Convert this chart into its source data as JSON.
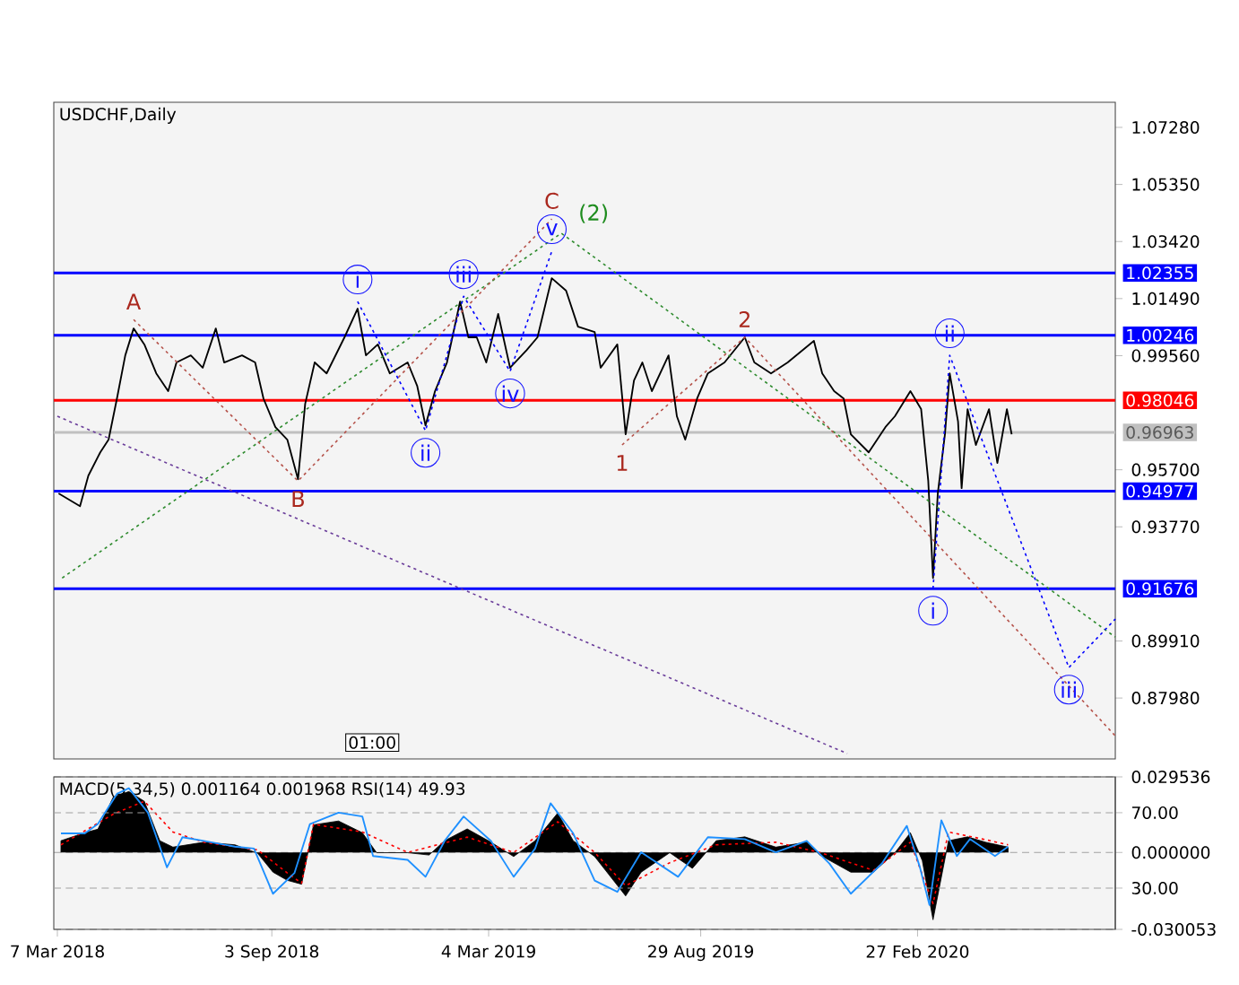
{
  "chart_data": [
    {
      "type": "line",
      "title": "USDCHF,Daily",
      "xlim": [
        "2018-03-04",
        "2020-08-11"
      ],
      "ylim": [
        0.8592,
        1.0813
      ],
      "tick_labels": "y",
      "yticks": [
        {
          "value": 1.0728,
          "label": "1.07280"
        },
        {
          "value": 1.0535,
          "label": "1.05350"
        },
        {
          "value": 1.0342,
          "label": "1.03420"
        },
        {
          "value": 1.0149,
          "label": "1.01490"
        },
        {
          "value": 0.9956,
          "label": "0.99560"
        },
        {
          "value": 0.957,
          "label": "0.95700"
        },
        {
          "value": 0.9377,
          "label": "0.93770"
        },
        {
          "value": 0.8991,
          "label": "0.89910"
        },
        {
          "value": 0.8798,
          "label": "0.87980"
        }
      ],
      "series": [
        {
          "color": "#000000",
          "x": [
            "2018-03-08",
            "2018-03-26",
            "2018-04-02",
            "2018-04-12",
            "2018-04-19",
            "2018-04-26",
            "2018-05-03",
            "2018-05-10",
            "2018-05-19",
            "2018-05-29",
            "2018-06-08",
            "2018-06-15",
            "2018-06-27",
            "2018-07-07",
            "2018-07-18",
            "2018-07-25",
            "2018-08-09",
            "2018-08-20",
            "2018-08-27",
            "2018-09-06",
            "2018-09-16",
            "2018-09-25",
            "2018-10-01",
            "2018-10-09",
            "2018-10-19",
            "2018-11-03",
            "2018-11-14",
            "2018-11-21",
            "2018-12-01",
            "2018-12-11",
            "2018-12-26",
            "2019-01-03",
            "2019-01-10",
            "2019-01-18",
            "2019-01-28",
            "2019-02-08",
            "2019-02-15",
            "2019-02-22",
            "2019-03-02",
            "2019-03-12",
            "2019-03-22",
            "2019-04-05",
            "2019-04-14",
            "2019-04-26",
            "2019-05-08",
            "2019-05-18",
            "2019-06-01",
            "2019-06-06",
            "2019-06-20",
            "2019-06-27",
            "2019-07-04",
            "2019-07-11",
            "2019-07-19",
            "2019-08-02",
            "2019-08-09",
            "2019-08-16",
            "2019-08-26",
            "2019-09-04",
            "2019-09-18",
            "2019-10-05",
            "2019-10-13",
            "2019-10-27",
            "2019-11-10",
            "2019-12-02",
            "2019-12-09",
            "2019-12-19",
            "2019-12-27",
            "2020-01-02",
            "2020-01-17",
            "2020-01-31",
            "2020-02-08",
            "2020-02-21",
            "2020-03-01",
            "2020-03-07",
            "2020-03-11",
            "2020-03-15",
            "2020-03-21",
            "2020-03-25",
            "2020-04-01",
            "2020-04-04",
            "2020-04-09",
            "2020-04-16",
            "2020-04-27",
            "2020-05-04",
            "2020-05-12",
            "2020-05-16"
          ],
          "values": [
            0.949,
            0.9447,
            0.955,
            0.9629,
            0.9672,
            0.9811,
            0.9957,
            1.0048,
            0.9994,
            0.9896,
            0.9836,
            0.9933,
            0.9957,
            0.9915,
            1.0048,
            0.9933,
            0.9957,
            0.9933,
            0.9811,
            0.9714,
            0.9672,
            0.9538,
            0.9793,
            0.9933,
            0.9896,
            1.0018,
            1.0115,
            0.9957,
            0.9994,
            0.9896,
            0.9933,
            0.9854,
            0.972,
            0.9836,
            0.9933,
            1.0139,
            1.0018,
            1.0018,
            0.9933,
            1.0097,
            0.9915,
            0.9975,
            1.0018,
            1.0218,
            1.0176,
            1.0054,
            1.0036,
            0.9915,
            0.9994,
            0.969,
            0.9872,
            0.9933,
            0.9836,
            0.9957,
            0.9751,
            0.9672,
            0.9811,
            0.9896,
            0.9933,
            1.0018,
            0.9933,
            0.9896,
            0.9933,
            1.0006,
            0.9896,
            0.9836,
            0.9811,
            0.969,
            0.9629,
            0.9714,
            0.9751,
            0.9836,
            0.9775,
            0.9532,
            0.9204,
            0.949,
            0.969,
            0.9896,
            0.9733,
            0.9508,
            0.9775,
            0.9654,
            0.9775,
            0.9593,
            0.9775,
            0.969
          ]
        },
        {
          "color": "#2e8b2e",
          "line_style": "dotted",
          "x": [
            "2018-03-11",
            "2019-05-04",
            "2020-08-11"
          ],
          "values": [
            0.9204,
            1.037,
            0.9004
          ]
        },
        {
          "color": "#b5524a",
          "line_style": "dotted",
          "x": [
            "2018-05-10",
            "2018-09-25",
            "2019-04-26"
          ],
          "values": [
            1.0078,
            0.9532,
            1.0418
          ]
        },
        {
          "color": "#b5524a",
          "line_style": "dotted",
          "x": [
            "2019-06-24",
            "2019-10-05",
            "2020-08-11"
          ],
          "values": [
            0.9654,
            1.0018,
            0.867
          ]
        },
        {
          "color": "#6a3d9a",
          "line_style": "dotted",
          "x": [
            "2018-03-07",
            "2019-12-30"
          ],
          "values": [
            0.9751,
            0.861
          ]
        },
        {
          "color": "#0000ff",
          "line_style": "dotted",
          "x": [
            "2018-11-14",
            "2019-01-10",
            "2019-02-11",
            "2019-03-22",
            "2019-04-26"
          ],
          "values": [
            1.0139,
            0.9702,
            1.0157,
            0.9903,
            1.0309
          ]
        },
        {
          "color": "#0000ff",
          "line_style": "dotted",
          "x": [
            "2020-03-11",
            "2020-03-25",
            "2020-07-03",
            "2020-08-11"
          ],
          "values": [
            0.9168,
            0.9957,
            0.8901,
            0.9065
          ]
        }
      ],
      "ref_lines": [
        {
          "axis": "y",
          "value": 1.02355,
          "label": "1.02355",
          "color": "#0000ff"
        },
        {
          "axis": "y",
          "value": 1.00246,
          "label": "1.00246",
          "color": "#0000ff"
        },
        {
          "axis": "y",
          "value": 0.98046,
          "label": "0.98046",
          "color": "#ff0000"
        },
        {
          "axis": "y",
          "value": 0.96963,
          "label": "0.96963",
          "color": "#c0c0c0"
        },
        {
          "axis": "y",
          "value": 0.94977,
          "label": "0.94977",
          "color": "#0000ff"
        },
        {
          "axis": "y",
          "value": 0.91676,
          "label": "0.91676",
          "color": "#0000ff"
        }
      ],
      "annotations": [
        {
          "text": "i",
          "x": "2018-11-14",
          "y": 1.0139
        },
        {
          "text": "ii",
          "x": "2019-01-10",
          "y": 0.9702
        },
        {
          "text": "iii",
          "x": "2019-02-11",
          "y": 1.0157
        },
        {
          "text": "iv",
          "x": "2019-03-22",
          "y": 0.9903
        },
        {
          "text": "v",
          "x": "2019-04-26",
          "y": 1.0309
        },
        {
          "text": "A",
          "x": "2018-05-10",
          "y": 1.0078
        },
        {
          "text": "B",
          "x": "2018-09-25",
          "y": 0.9532
        },
        {
          "text": "C",
          "x": "2019-04-26",
          "y": 1.0418
        },
        {
          "text": "(2)",
          "x": "2019-05-04",
          "y": 1.037
        },
        {
          "text": "1",
          "x": "2019-06-24",
          "y": 0.9654
        },
        {
          "text": "2",
          "x": "2019-10-05",
          "y": 1.0018
        },
        {
          "text": "i",
          "x": "2020-03-11",
          "y": 0.9168
        },
        {
          "text": "ii",
          "x": "2020-03-25",
          "y": 0.9957
        },
        {
          "text": "iii",
          "x": "2020-07-03",
          "y": 0.8901
        },
        "01:00"
      ]
    },
    {
      "type": "line",
      "title": "MACD(5,34,5) 0.001164 0.001968 RSI(14) 49.93",
      "xlim": [
        "2018-03-04",
        "2020-08-11"
      ],
      "ylim": [
        -0.030053,
        0.029536
      ],
      "y2lim": [
        8.1,
        89.0
      ],
      "grid": "y",
      "xticks": [
        {
          "value": "2018-03-07",
          "label": "7 Mar 2018"
        },
        {
          "value": "2018-09-03",
          "label": "3 Sep 2018"
        },
        {
          "value": "2019-03-04",
          "label": "4 Mar 2019"
        },
        {
          "value": "2019-08-29",
          "label": "29 Aug 2019"
        },
        {
          "value": "2020-02-27",
          "label": "27 Feb 2020"
        }
      ],
      "yticks": [
        0.029536,
        {
          "value": 0,
          "label": "0.000000"
        },
        -0.030053
      ],
      "y2ticks": [
        {
          "value": 70,
          "label": "70.00"
        },
        {
          "value": 30,
          "label": "30.00"
        }
      ],
      "series": [
        {
          "type": "area",
          "color": "#000000",
          "x": [
            "2018-03-10",
            "2018-03-30",
            "2018-04-10",
            "2018-04-23",
            "2018-05-06",
            "2018-05-19",
            "2018-06-01",
            "2018-06-12",
            "2018-07-08",
            "2018-08-03",
            "2018-08-22",
            "2018-09-04",
            "2018-09-16",
            "2018-09-28",
            "2018-10-08",
            "2018-10-29",
            "2018-11-18",
            "2018-11-30",
            "2018-12-26",
            "2019-01-13",
            "2019-01-26",
            "2019-02-14",
            "2019-03-06",
            "2019-03-25",
            "2019-04-12",
            "2019-05-01",
            "2019-05-14",
            "2019-06-01",
            "2019-06-27",
            "2019-07-10",
            "2019-08-03",
            "2019-08-22",
            "2019-09-11",
            "2019-10-05",
            "2019-10-31",
            "2019-11-26",
            "2019-12-07",
            "2020-01-02",
            "2020-01-21",
            "2020-02-08",
            "2020-02-21",
            "2020-03-02",
            "2020-03-11",
            "2020-03-24",
            "2020-04-09",
            "2020-04-24",
            "2020-05-13"
          ],
          "values": [
            0.0046,
            0.0077,
            0.0091,
            0.0217,
            0.0238,
            0.02,
            0.0046,
            0.0021,
            0.004,
            0.003,
            -0.0003,
            -0.0077,
            -0.0109,
            -0.0124,
            0.0108,
            0.0123,
            0.0077,
            -0.0001,
            -0.0001,
            -0.001,
            0.0046,
            0.0092,
            0.004,
            -0.0016,
            0.0046,
            0.0154,
            0.0046,
            -0.0016,
            -0.017,
            -0.0077,
            -0.0001,
            -0.0062,
            0.0046,
            0.0061,
            0.0021,
            0.004,
            -0.001,
            -0.0077,
            -0.0077,
            -0.0001,
            0.0077,
            -0.0032,
            -0.0263,
            0.0046,
            0.0061,
            0.004,
            0.0021
          ]
        },
        {
          "color": "#ff0000",
          "line_style": "dotted",
          "x": [
            "2018-03-10",
            "2018-04-23",
            "2018-05-19",
            "2018-06-12",
            "2018-07-08",
            "2018-08-22",
            "2018-09-16",
            "2018-09-28",
            "2018-10-08",
            "2018-11-18",
            "2018-12-26",
            "2019-02-14",
            "2019-03-25",
            "2019-05-01",
            "2019-06-01",
            "2019-06-27",
            "2019-08-03",
            "2019-09-11",
            "2019-10-31",
            "2019-12-07",
            "2020-01-21",
            "2020-02-21",
            "2020-03-11",
            "2020-03-24",
            "2020-04-24",
            "2020-05-13"
          ],
          "values": [
            0.003,
            0.015,
            0.02,
            0.008,
            0.004,
            0.001,
            -0.008,
            -0.012,
            0.011,
            0.008,
            0.0,
            0.006,
            0.0,
            0.012,
            0.0,
            -0.013,
            -0.004,
            0.003,
            0.004,
            0.0,
            -0.007,
            0.004,
            -0.02,
            0.008,
            0.005,
            0.003
          ]
        },
        {
          "color": "#1e90ff",
          "axis": "y2",
          "x": [
            "2018-03-10",
            "2018-03-30",
            "2018-04-10",
            "2018-04-26",
            "2018-05-06",
            "2018-05-22",
            "2018-06-07",
            "2018-06-20",
            "2018-07-08",
            "2018-08-03",
            "2018-08-19",
            "2018-09-04",
            "2018-09-22",
            "2018-10-05",
            "2018-10-29",
            "2018-11-18",
            "2018-11-27",
            "2018-12-26",
            "2019-01-10",
            "2019-01-26",
            "2019-02-11",
            "2019-03-06",
            "2019-03-25",
            "2019-04-12",
            "2019-04-25",
            "2019-05-14",
            "2019-06-01",
            "2019-06-20",
            "2019-07-10",
            "2019-08-10",
            "2019-09-04",
            "2019-10-05",
            "2019-10-31",
            "2019-11-26",
            "2019-12-15",
            "2020-01-02",
            "2020-01-28",
            "2020-02-18",
            "2020-02-29",
            "2020-03-08",
            "2020-03-18",
            "2020-03-31",
            "2020-04-11",
            "2020-05-02",
            "2020-05-13"
          ],
          "values": [
            59,
            59,
            64,
            80,
            83,
            70,
            41,
            57,
            55,
            52,
            51,
            27,
            38,
            64,
            70,
            68,
            47,
            45,
            36,
            55,
            68,
            55,
            36,
            51,
            75,
            59,
            34,
            28,
            49,
            36,
            57,
            56,
            49,
            55,
            43,
            27,
            43,
            63,
            41,
            21,
            66,
            47,
            56,
            47,
            52
          ]
        }
      ]
    }
  ]
}
